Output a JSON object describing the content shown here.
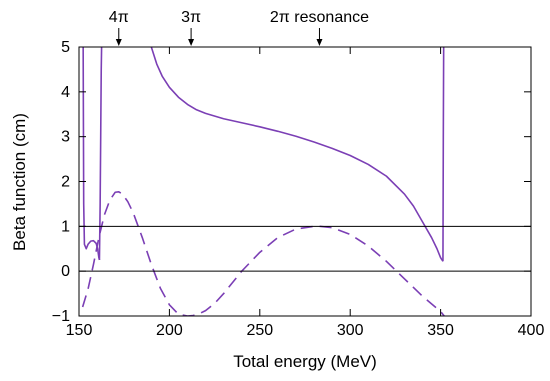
{
  "chart_data": {
    "type": "line",
    "title": "",
    "xlabel": "Total energy  (MeV)",
    "ylabel": "Beta function (cm)",
    "xlim": [
      150,
      400
    ],
    "ylim": [
      -1,
      5
    ],
    "xticks": [
      150,
      200,
      250,
      300,
      350,
      400
    ],
    "yticks": [
      -1,
      0,
      1,
      2,
      3,
      4,
      5
    ],
    "xtick_labels": [
      "150",
      "200",
      "250",
      "300",
      "350",
      "400"
    ],
    "ytick_labels": [
      "−1",
      "0",
      "1",
      "2",
      "3",
      "4",
      "5"
    ],
    "grid": false,
    "legend": "none",
    "reference_lines": [
      {
        "y": 0
      },
      {
        "y": 1
      }
    ],
    "annotations": [
      {
        "text": "4π",
        "x": 172
      },
      {
        "text": "3π",
        "x": 212
      },
      {
        "text": "2π resonance",
        "x": 283
      }
    ],
    "series": [
      {
        "style": "solid",
        "color": "#7b3fb5",
        "segments": [
          {
            "x": [
              152.3,
              152.6,
              153,
              154,
              155,
              156.5,
              158,
              159.5,
              160.3,
              161,
              161.3
            ],
            "y": [
              5,
              1.5,
              0.6,
              0.5,
              0.6,
              0.67,
              0.68,
              0.62,
              0.5,
              0.3,
              0.25
            ]
          },
          {
            "x": [
              161.3,
              161.7,
              162,
              162.3,
              162.5
            ],
            "y": [
              0.25,
              1.5,
              3,
              4.5,
              5
            ]
          },
          {
            "x": [
              190,
              193,
              196,
              200,
              205,
              210,
              215,
              220,
              230,
              240,
              250,
              260,
              270,
              280,
              290,
              300,
              310,
              320,
              330,
              335,
              340,
              345,
              348,
              350,
              351.3
            ],
            "y": [
              5,
              4.62,
              4.35,
              4.1,
              3.88,
              3.72,
              3.6,
              3.52,
              3.4,
              3.31,
              3.22,
              3.12,
              3.01,
              2.88,
              2.74,
              2.58,
              2.38,
              2.12,
              1.72,
              1.45,
              1.1,
              0.75,
              0.5,
              0.3,
              0.22
            ]
          },
          {
            "x": [
              351.3,
              351.5,
              351.7
            ],
            "y": [
              0.22,
              3,
              5
            ]
          }
        ]
      },
      {
        "style": "dashed",
        "color": "#7b3fb5",
        "segments": [
          {
            "x": [
              152,
              155,
              158,
              161,
              164,
              167,
              170,
              172,
              174,
              177,
              180,
              185,
              190,
              195,
              200,
              205,
              210,
              213,
              216,
              220,
              225,
              230,
              240,
              250,
              260,
              270,
              280,
              283,
              290,
              300,
              310,
              320,
              330,
              340,
              345,
              350,
              352
            ],
            "y": [
              -0.8,
              -0.4,
              0.15,
              0.75,
              1.25,
              1.58,
              1.76,
              1.77,
              1.72,
              1.55,
              1.3,
              0.75,
              0.15,
              -0.38,
              -0.75,
              -0.96,
              -1.0,
              -0.99,
              -0.96,
              -0.88,
              -0.72,
              -0.5,
              0.0,
              0.42,
              0.75,
              0.94,
              1.0,
              1.0,
              0.97,
              0.82,
              0.56,
              0.22,
              -0.17,
              -0.56,
              -0.73,
              -0.9,
              -1.0
            ]
          }
        ]
      }
    ]
  }
}
